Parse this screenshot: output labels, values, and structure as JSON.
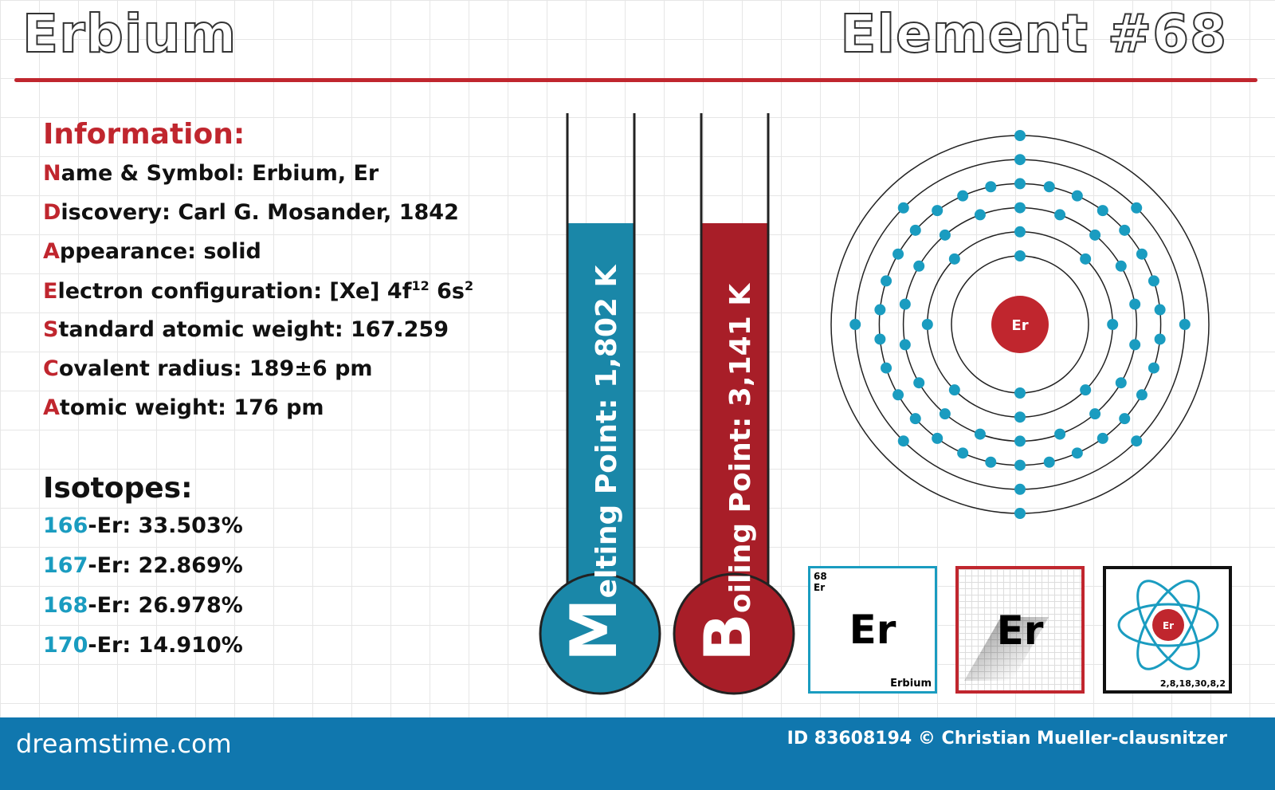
{
  "header": {
    "element_name": "Erbium",
    "element_number": "Element #68"
  },
  "information": {
    "heading": "Information:",
    "lines": [
      {
        "initial": "N",
        "rest": "ame & Symbol: Erbium, Er"
      },
      {
        "initial": "D",
        "rest": "iscovery: Carl G. Mosander, 1842"
      },
      {
        "initial": "A",
        "rest": "ppearance: solid"
      },
      {
        "initial": "E",
        "rest": "lectron configuration: [Xe] 4f",
        "sup1": "12",
        "mid": " 6s",
        "sup2": "2"
      },
      {
        "initial": "S",
        "rest": "tandard atomic weight: 167.259"
      },
      {
        "initial": "C",
        "rest": "ovalent radius: 189±6 pm"
      },
      {
        "initial": "A",
        "rest": "tomic weight: 176 pm"
      }
    ]
  },
  "isotopes": {
    "heading": "Isotopes:",
    "items": [
      {
        "mass": "166",
        "rest": "-Er: 33.503%"
      },
      {
        "mass": "167",
        "rest": "-Er: 22.869%"
      },
      {
        "mass": "168",
        "rest": "-Er: 26.978%"
      },
      {
        "mass": "170",
        "rest": "-Er: 14.910%"
      }
    ]
  },
  "thermometers": {
    "melting": {
      "initial": "M",
      "label": "elting Point: 1,802 K",
      "color": "#1a87a8"
    },
    "boiling": {
      "initial": "B",
      "label": "oiling Point: 3,141 K",
      "color": "#a81e28"
    }
  },
  "atom": {
    "symbol": "Er",
    "shells": [
      2,
      8,
      18,
      30,
      8,
      2
    ],
    "electron_color": "#1a9cc0",
    "nucleus_color": "#c0262e"
  },
  "cards": {
    "card1": {
      "number": "68",
      "symbol_small": "Er",
      "symbol": "Er",
      "name": "Erbium"
    },
    "card2": {
      "symbol": "Er"
    },
    "card3": {
      "symbol": "Er",
      "shells": "2,8,18,30,8,2"
    }
  },
  "footer": {
    "logo": "dreamstime.com",
    "credit": "ID 83608194 © Christian Mueller-clausnitzer"
  }
}
